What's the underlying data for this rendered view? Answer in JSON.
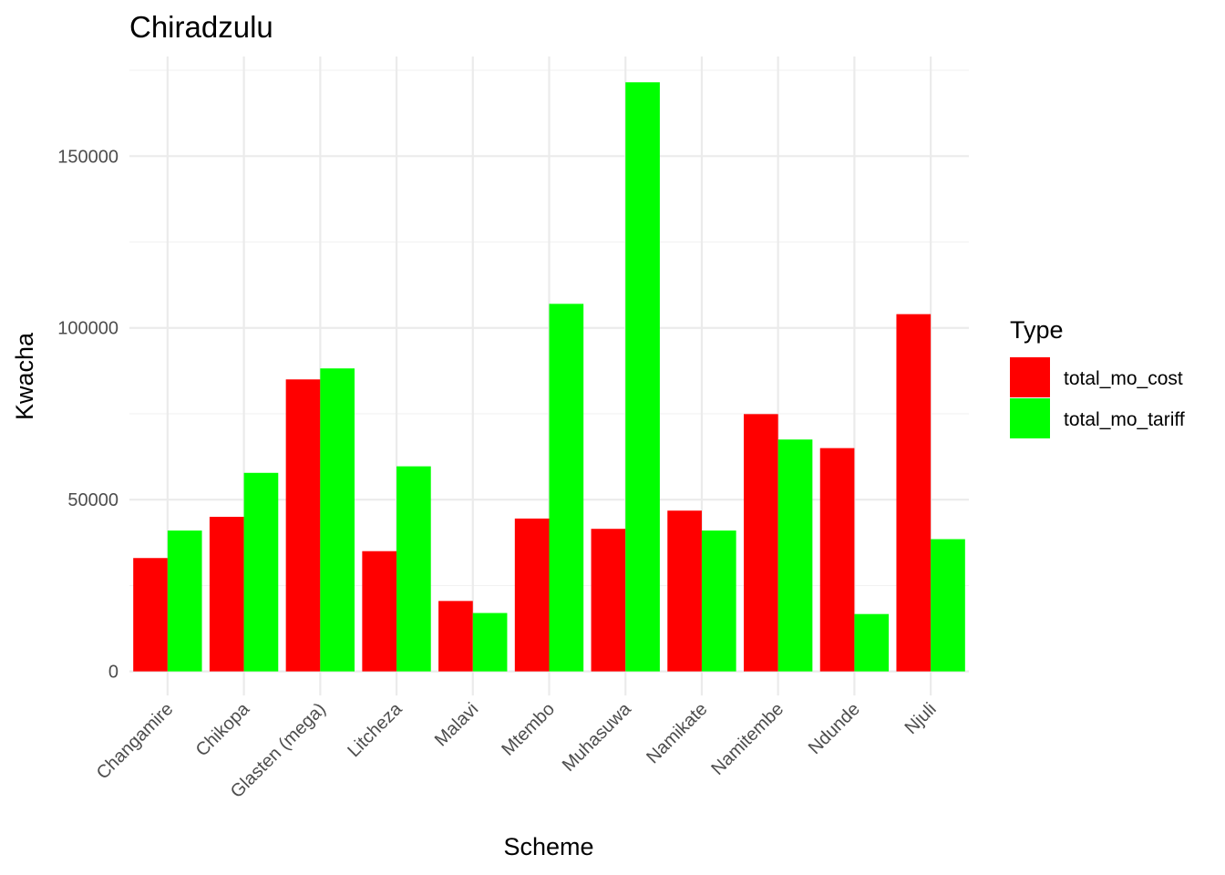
{
  "chart_data": {
    "type": "bar",
    "title": "Chiradzulu",
    "xlabel": "Scheme",
    "ylabel": "Kwacha",
    "categories": [
      "Changamire",
      "Chikopa",
      "Glasten (mega)",
      "Litcheza",
      "Malavi",
      "Mtembo",
      "Muhasuwa",
      "Namikate",
      "Namitembe",
      "Ndunde",
      "Njuli"
    ],
    "series": [
      {
        "name": "total_mo_cost",
        "color": "#ff0000",
        "values": [
          33000,
          45000,
          85000,
          35000,
          20500,
          44500,
          41500,
          46800,
          74900,
          65000,
          104000
        ]
      },
      {
        "name": "total_mo_tariff",
        "color": "#00ff00",
        "values": [
          41000,
          57800,
          88200,
          59700,
          17000,
          107000,
          171500,
          41000,
          67500,
          16700,
          38500
        ]
      }
    ],
    "ylim": [
      -7000,
      179000
    ],
    "yticks": [
      0,
      50000,
      100000,
      150000
    ],
    "ytick_labels": [
      "0",
      "50000",
      "100000",
      "150000"
    ],
    "legend": {
      "title": "Type",
      "position": "right"
    },
    "grid": true
  }
}
